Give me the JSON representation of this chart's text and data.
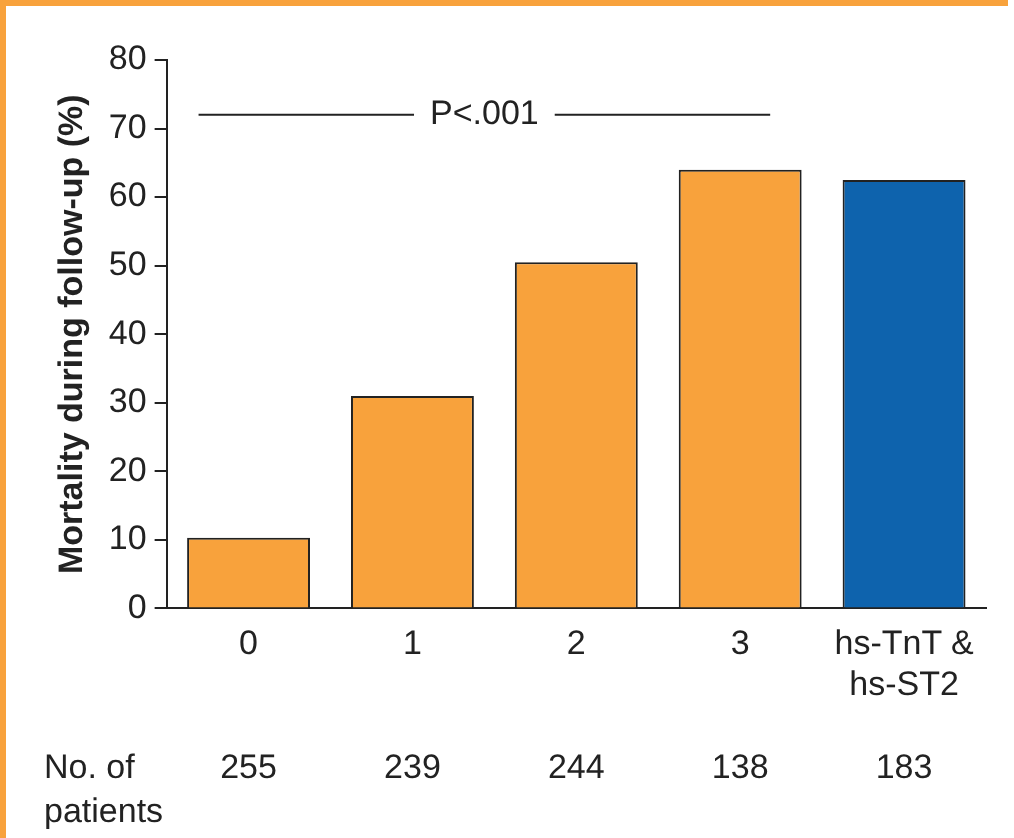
{
  "chart_data": {
    "type": "bar",
    "ylabel": "Mortality during follow-up (%)",
    "categories": [
      "0",
      "1",
      "2",
      "3",
      "hs-TnT & hs-ST2"
    ],
    "values": [
      10.3,
      31,
      50.5,
      64,
      62.5
    ],
    "colors": [
      "#f8a23c",
      "#f8a23c",
      "#f8a23c",
      "#f8a23c",
      "#0e63ad"
    ],
    "ylim": [
      0,
      80
    ],
    "yticks": [
      0,
      10,
      20,
      30,
      40,
      50,
      60,
      70,
      80
    ],
    "grid": false,
    "legend": false,
    "annotations": [
      "P<.001",
      "No. of patients",
      "255",
      "239",
      "244",
      "138",
      "183"
    ]
  }
}
